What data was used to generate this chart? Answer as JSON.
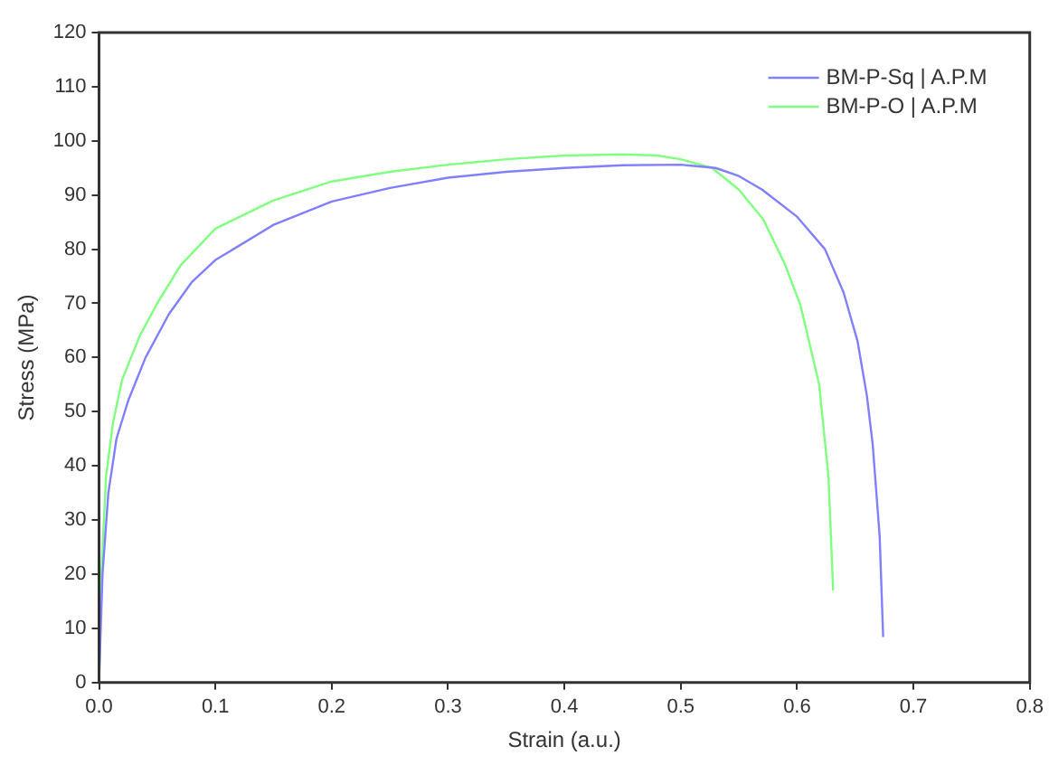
{
  "chart_data": {
    "type": "line",
    "xlabel": "Strain (a.u.)",
    "ylabel": "Stress (MPa)",
    "xlim": [
      0,
      0.8
    ],
    "ylim": [
      0,
      120
    ],
    "xticks": [
      {
        "value": 0,
        "label": "0.0"
      },
      0.1,
      0.2,
      0.3,
      0.4,
      0.5,
      0.6,
      0.7,
      0.8
    ],
    "yticks": [
      0,
      10,
      20,
      30,
      40,
      50,
      60,
      70,
      80,
      90,
      100,
      110,
      120
    ],
    "grid": false,
    "legend": "top right",
    "marker": "none",
    "line_style": "solid",
    "series": [
      {
        "name": "BM-P-Sq | A.P.M",
        "color": "#8080ff",
        "x": [
          0,
          0.003,
          0.008,
          0.015,
          0.025,
          0.04,
          0.06,
          0.08,
          0.1,
          0.15,
          0.2,
          0.25,
          0.3,
          0.35,
          0.4,
          0.45,
          0.5,
          0.53,
          0.55,
          0.57,
          0.6,
          0.624,
          0.64,
          0.652,
          0.66,
          0.665,
          0.671,
          0.674
        ],
        "values": [
          0,
          20,
          35,
          45,
          52,
          60,
          68,
          74,
          78,
          84.5,
          88.8,
          91.3,
          93.2,
          94.3,
          95,
          95.5,
          95.6,
          95,
          93.5,
          91,
          86,
          80,
          72,
          63,
          53,
          44,
          27,
          8.4
        ]
      },
      {
        "name": "BM-P-O | A.P.M",
        "color": "#80ff80",
        "x": [
          0,
          0.002,
          0.006,
          0.012,
          0.02,
          0.035,
          0.05,
          0.07,
          0.1,
          0.15,
          0.2,
          0.25,
          0.3,
          0.35,
          0.4,
          0.45,
          0.48,
          0.5,
          0.527,
          0.55,
          0.571,
          0.59,
          0.603,
          0.619,
          0.627,
          0.631
        ],
        "values": [
          0,
          20,
          38,
          48,
          56,
          64,
          70,
          77,
          83.8,
          89,
          92.5,
          94.3,
          95.6,
          96.6,
          97.3,
          97.5,
          97.3,
          96.6,
          95,
          91,
          85.5,
          77,
          69.6,
          55,
          38,
          17
        ]
      }
    ]
  }
}
